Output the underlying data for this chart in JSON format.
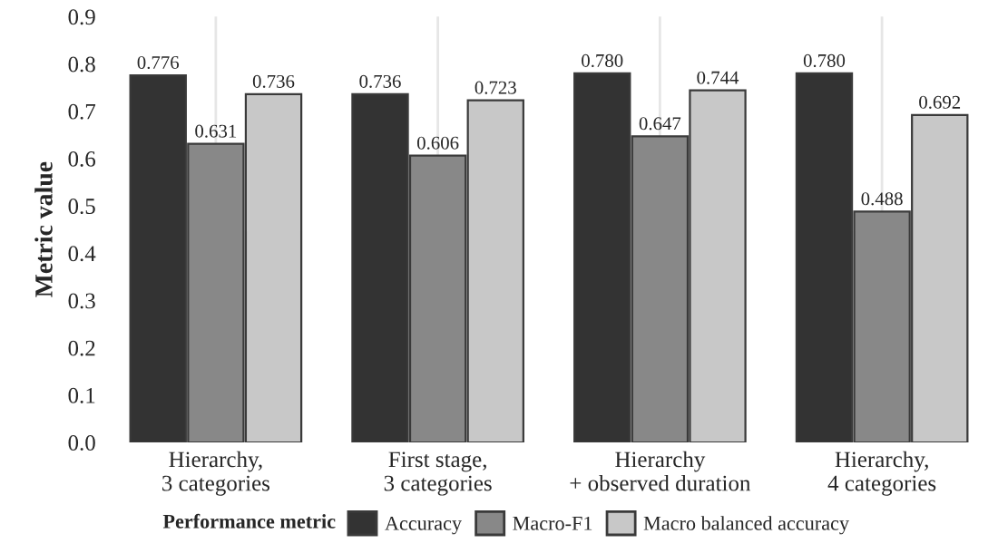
{
  "chart_data": {
    "type": "bar",
    "ylabel": "Metric value",
    "legend_title": "Performance metric",
    "categories": [
      "Hierarchy,\n3 categories",
      "First stage,\n3 categories",
      "Hierarchy\n+ observed duration",
      "Hierarchy,\n4 categories"
    ],
    "series": [
      {
        "name": "Accuracy",
        "color": "#333333",
        "values": [
          0.776,
          0.736,
          0.78,
          0.78
        ],
        "value_labels": [
          "0.776",
          "0.736",
          "0.780",
          "0.780"
        ]
      },
      {
        "name": "Macro-F1",
        "color": "#888888",
        "values": [
          0.631,
          0.606,
          0.647,
          0.488
        ],
        "value_labels": [
          "0.631",
          "0.606",
          "0.647",
          "0.488"
        ]
      },
      {
        "name": "Macro balanced accuracy",
        "color": "#c8c8c8",
        "values": [
          0.736,
          0.723,
          0.744,
          0.692
        ],
        "value_labels": [
          "0.736",
          "0.723",
          "0.744",
          "0.692"
        ]
      }
    ],
    "ylim": [
      0,
      0.9
    ],
    "yticks": [
      {
        "value": 0,
        "label": "0.0"
      },
      {
        "value": 0.1,
        "label": "0.1"
      },
      {
        "value": 0.2,
        "label": "0.2"
      },
      {
        "value": 0.3,
        "label": "0.3"
      },
      {
        "value": 0.4,
        "label": "0.4"
      },
      {
        "value": 0.5,
        "label": "0.5"
      },
      {
        "value": 0.6,
        "label": "0.6"
      },
      {
        "value": 0.7,
        "label": "0.7"
      },
      {
        "value": 0.8,
        "label": "0.8"
      },
      {
        "value": 0.9,
        "label": "0.9"
      }
    ],
    "grid": "x",
    "legend": "bottom"
  }
}
